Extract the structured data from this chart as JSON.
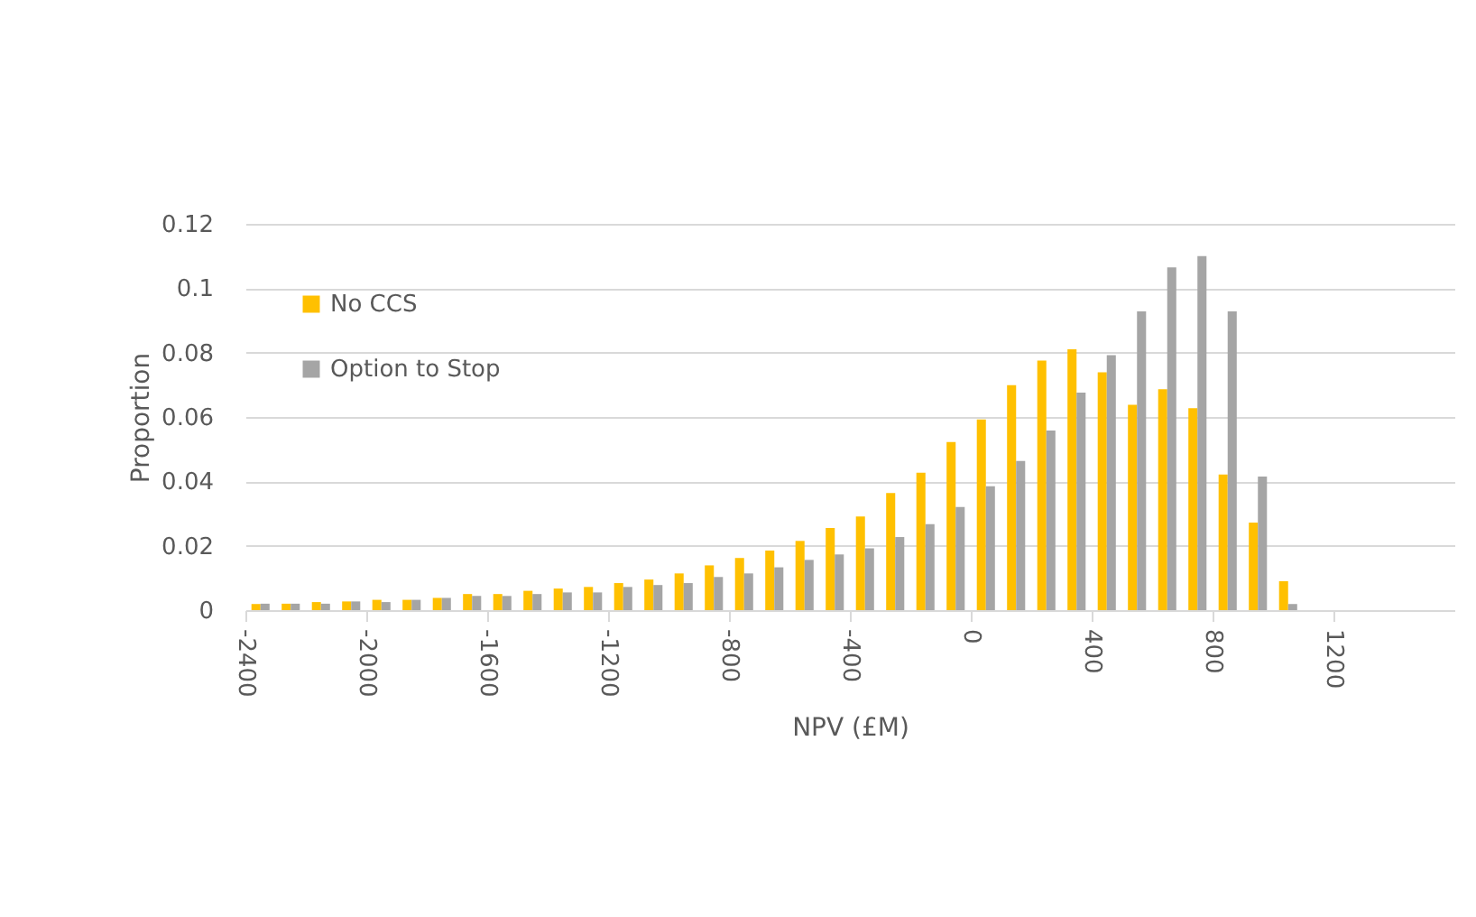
{
  "chart_data": {
    "type": "histogram",
    "xlabel": "NPV (£M)",
    "ylabel": "Proportion",
    "bins": [
      -2400,
      -2300,
      -2200,
      -2100,
      -2000,
      -1900,
      -1800,
      -1700,
      -1600,
      -1500,
      -1400,
      -1300,
      -1200,
      -1100,
      -1000,
      -900,
      -800,
      -700,
      -600,
      -500,
      -400,
      -300,
      -200,
      -100,
      0,
      100,
      200,
      300,
      400,
      500,
      600,
      700,
      800,
      900,
      1000,
      1100,
      1200
    ],
    "series": [
      {
        "name": "No CCS",
        "color": "#ffc000",
        "values": [
          0.0019,
          0.002,
          0.0025,
          0.0027,
          0.0032,
          0.0032,
          0.0038,
          0.005,
          0.005,
          0.006,
          0.0067,
          0.0072,
          0.0084,
          0.0095,
          0.0114,
          0.0139,
          0.0162,
          0.0185,
          0.0215,
          0.0255,
          0.0291,
          0.0364,
          0.0427,
          0.0522,
          0.0592,
          0.0699,
          0.0775,
          0.081,
          0.0739,
          0.0638,
          0.0686,
          0.0627,
          0.0421,
          0.0272,
          0.009,
          0
        ]
      },
      {
        "name": "Option to Stop",
        "color": "#a5a5a5",
        "values": [
          0.002,
          0.002,
          0.002,
          0.0027,
          0.0025,
          0.0032,
          0.0038,
          0.0044,
          0.0044,
          0.005,
          0.0055,
          0.0055,
          0.0072,
          0.0078,
          0.0084,
          0.0103,
          0.0114,
          0.0133,
          0.0156,
          0.0173,
          0.0192,
          0.0227,
          0.0267,
          0.032,
          0.0385,
          0.0463,
          0.0558,
          0.0676,
          0.0792,
          0.0928,
          0.1065,
          0.11,
          0.0928,
          0.0415,
          0.0019,
          0
        ]
      }
    ],
    "xlim": [
      -2400,
      1600
    ],
    "xticks": [
      -2400,
      -2000,
      -1600,
      -1200,
      -800,
      -400,
      0,
      400,
      800,
      1200
    ],
    "ylim": [
      0,
      0.12
    ],
    "yticks": [
      0,
      0.02,
      0.04,
      0.06,
      0.08,
      0.1,
      0.12
    ],
    "grid": "y",
    "legend": "top left"
  }
}
